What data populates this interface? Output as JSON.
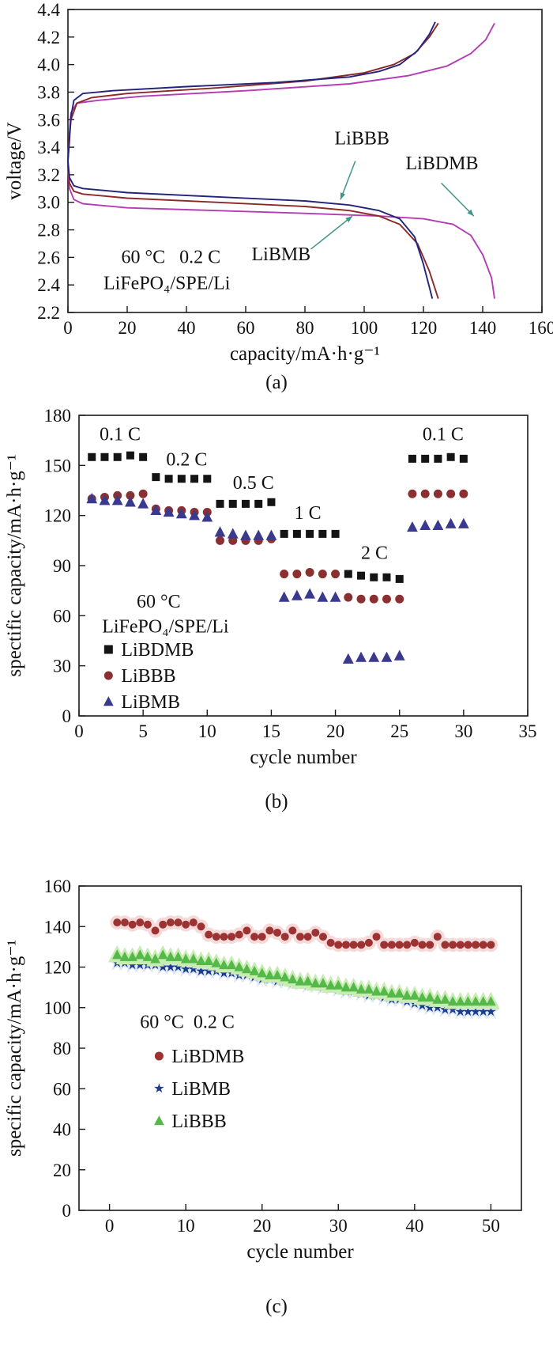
{
  "figure": {
    "text_color": "#111111",
    "arrow_color": "#3f9488"
  },
  "chart_data": [
    {
      "id": "a",
      "caption": "(a)",
      "type": "line",
      "xlabel": "capacity/mA·h·g⁻¹",
      "ylabel": "voltage/V",
      "xlim": [
        0,
        160
      ],
      "ylim": [
        2.2,
        4.4
      ],
      "xticks": [
        0,
        20,
        40,
        60,
        80,
        100,
        120,
        140,
        160
      ],
      "yticks": [
        2.2,
        2.4,
        2.6,
        2.8,
        3.0,
        3.2,
        3.4,
        3.6,
        3.8,
        4.0,
        4.2,
        4.4
      ],
      "xdec": 0,
      "ydec": 1,
      "annotations": [
        {
          "text": "60 °C   0.2 C",
          "ax": 18,
          "ay": 2.56
        },
        {
          "text": "LiFePO₄/SPE/Li",
          "ax": 12,
          "ay": 2.37
        },
        {
          "text": "LiBBB",
          "ax": 90,
          "ay": 3.42,
          "arrow": [
            97,
            3.3,
            92,
            3.02
          ]
        },
        {
          "text": "LiBDMB",
          "ax": 114,
          "ay": 3.24,
          "arrow": [
            126,
            3.14,
            137,
            2.9
          ]
        },
        {
          "text": "LiBMB",
          "ax": 62,
          "ay": 2.58,
          "arrow": [
            82,
            2.66,
            96,
            2.9
          ]
        }
      ],
      "series": [
        {
          "name": "LiBDMB charge",
          "color": "#b43cb4",
          "points": [
            [
              0,
              3.3
            ],
            [
              0.5,
              3.5
            ],
            [
              1,
              3.65
            ],
            [
              3,
              3.72
            ],
            [
              10,
              3.74
            ],
            [
              25,
              3.77
            ],
            [
              60,
              3.81
            ],
            [
              95,
              3.86
            ],
            [
              115,
              3.92
            ],
            [
              128,
              3.99
            ],
            [
              136,
              4.08
            ],
            [
              141,
              4.18
            ],
            [
              144,
              4.3
            ]
          ]
        },
        {
          "name": "LiBDMB discharge",
          "color": "#b43cb4",
          "points": [
            [
              0,
              3.24
            ],
            [
              0.5,
              3.1
            ],
            [
              2,
              3.02
            ],
            [
              5,
              2.99
            ],
            [
              20,
              2.96
            ],
            [
              50,
              2.94
            ],
            [
              80,
              2.92
            ],
            [
              105,
              2.9
            ],
            [
              120,
              2.88
            ],
            [
              130,
              2.84
            ],
            [
              136,
              2.76
            ],
            [
              140,
              2.62
            ],
            [
              143,
              2.45
            ],
            [
              144,
              2.3
            ]
          ]
        },
        {
          "name": "LiBMB charge",
          "color": "#8b2929",
          "points": [
            [
              0,
              3.32
            ],
            [
              0.5,
              3.48
            ],
            [
              1,
              3.6
            ],
            [
              3,
              3.72
            ],
            [
              8,
              3.76
            ],
            [
              20,
              3.79
            ],
            [
              50,
              3.83
            ],
            [
              80,
              3.88
            ],
            [
              100,
              3.94
            ],
            [
              110,
              4.0
            ],
            [
              117,
              4.08
            ],
            [
              122,
              4.2
            ],
            [
              125,
              4.3
            ]
          ]
        },
        {
          "name": "LiBMB discharge",
          "color": "#8b2929",
          "points": [
            [
              0,
              3.27
            ],
            [
              0.5,
              3.14
            ],
            [
              2,
              3.08
            ],
            [
              5,
              3.06
            ],
            [
              20,
              3.03
            ],
            [
              50,
              3.0
            ],
            [
              80,
              2.97
            ],
            [
              95,
              2.94
            ],
            [
              105,
              2.9
            ],
            [
              112,
              2.84
            ],
            [
              118,
              2.7
            ],
            [
              122,
              2.5
            ],
            [
              125,
              2.3
            ]
          ]
        },
        {
          "name": "LiBBB charge",
          "color": "#23237d",
          "points": [
            [
              0,
              3.3
            ],
            [
              0.5,
              3.45
            ],
            [
              1,
              3.62
            ],
            [
              2,
              3.74
            ],
            [
              5,
              3.79
            ],
            [
              15,
              3.81
            ],
            [
              40,
              3.84
            ],
            [
              70,
              3.87
            ],
            [
              95,
              3.91
            ],
            [
              105,
              3.95
            ],
            [
              112,
              4.0
            ],
            [
              118,
              4.1
            ],
            [
              122,
              4.22
            ],
            [
              124,
              4.31
            ]
          ]
        },
        {
          "name": "LiBBB discharge",
          "color": "#23237d",
          "points": [
            [
              0,
              3.3
            ],
            [
              0.5,
              3.18
            ],
            [
              2,
              3.12
            ],
            [
              5,
              3.1
            ],
            [
              20,
              3.07
            ],
            [
              50,
              3.04
            ],
            [
              80,
              3.01
            ],
            [
              95,
              2.98
            ],
            [
              105,
              2.94
            ],
            [
              112,
              2.88
            ],
            [
              117,
              2.75
            ],
            [
              120,
              2.55
            ],
            [
              123,
              2.3
            ]
          ]
        }
      ]
    },
    {
      "id": "b",
      "caption": "(b)",
      "type": "scatter",
      "xlabel": "cycle number",
      "ylabel": "spectific capacity/mA·h·g⁻¹",
      "xlim": [
        0,
        35
      ],
      "ylim": [
        0,
        180
      ],
      "xticks": [
        0,
        5,
        10,
        15,
        20,
        25,
        30,
        35
      ],
      "yticks": [
        0,
        30,
        60,
        90,
        120,
        150,
        180
      ],
      "xdec": 0,
      "ydec": 0,
      "annotations": [
        {
          "text": "0.1 C",
          "ax": 1.6,
          "ay": 165
        },
        {
          "text": "0.2 C",
          "ax": 6.8,
          "ay": 150
        },
        {
          "text": "0.5 C",
          "ax": 12,
          "ay": 136
        },
        {
          "text": "1 C",
          "ax": 16.8,
          "ay": 118
        },
        {
          "text": "2 C",
          "ax": 22,
          "ay": 94
        },
        {
          "text": "0.1 C",
          "ax": 26.8,
          "ay": 165
        },
        {
          "text": "60 °C",
          "ax": 4.5,
          "ay": 65
        },
        {
          "text": "LiFePO₄/SPE/Li",
          "ax": 1.8,
          "ay": 50
        }
      ],
      "legend": {
        "ax": 2.3,
        "ay": 36,
        "items": [
          {
            "label": "LiBDMB",
            "marker": "square",
            "color": "#141414"
          },
          {
            "label": "LiBBB",
            "marker": "circle",
            "color": "#8b3030"
          },
          {
            "label": "LiBMB",
            "marker": "triangle",
            "color": "#39398d"
          }
        ]
      },
      "series": [
        {
          "name": "LiBDMB",
          "marker": "square",
          "color": "#141414",
          "size": 5,
          "x_from": 1,
          "y": [
            155,
            155,
            155,
            156,
            155,
            143,
            142,
            142,
            142,
            142,
            127,
            127,
            127,
            127,
            128,
            109,
            109,
            109,
            109,
            109,
            85,
            84,
            83,
            83,
            82,
            154,
            154,
            154,
            155,
            154
          ]
        },
        {
          "name": "LiBBB",
          "marker": "circle",
          "color": "#8b3030",
          "size": 5.5,
          "x_from": 1,
          "y": [
            130,
            131,
            132,
            132,
            133,
            124,
            123,
            123,
            122,
            122,
            105,
            105,
            105,
            105,
            106,
            85,
            85,
            86,
            85,
            85,
            71,
            70,
            70,
            70,
            70,
            133,
            133,
            133,
            133,
            133
          ]
        },
        {
          "name": "LiBMB",
          "marker": "triangle",
          "color": "#39398d",
          "size": 6,
          "x_from": 1,
          "y": [
            130,
            129,
            129,
            128,
            127,
            123,
            122,
            121,
            120,
            119,
            110,
            109,
            108,
            108,
            108,
            71,
            72,
            73,
            71,
            71,
            34,
            35,
            35,
            35,
            36,
            113,
            114,
            114,
            115,
            115
          ]
        }
      ]
    },
    {
      "id": "c",
      "caption": "(c)",
      "type": "scatter",
      "xlabel": "cycle number",
      "ylabel": "specific capacity/mA·h·g⁻¹",
      "xlim": [
        -4,
        54
      ],
      "ylim": [
        0,
        160
      ],
      "xticks": [
        0,
        10,
        20,
        30,
        40,
        50
      ],
      "yticks": [
        0,
        20,
        40,
        60,
        80,
        100,
        120,
        140,
        160
      ],
      "xdec": 0,
      "ydec": 0,
      "annotations": [
        {
          "text": "60 °C  0.2 C",
          "ax": 4,
          "ay": 90
        }
      ],
      "legend": {
        "ax": 6.5,
        "ay": 73,
        "items": [
          {
            "label": "LiBDMB",
            "marker": "circle",
            "color": "#9c3232"
          },
          {
            "label": "LiBMB",
            "marker": "star",
            "color": "#1b3d8f"
          },
          {
            "label": "LiBBB",
            "marker": "triangle",
            "color": "#55b94a"
          }
        ]
      },
      "series": [
        {
          "name": "LiBDMB",
          "marker": "circle",
          "color": "#9c3232",
          "halo": "#f6dada",
          "size": 5,
          "x_from": 1,
          "y": [
            142,
            142,
            141,
            142,
            141,
            138,
            141,
            142,
            142,
            141,
            142,
            140,
            136,
            135,
            135,
            135,
            136,
            138,
            135,
            135,
            138,
            137,
            135,
            138,
            135,
            135,
            137,
            135,
            132,
            131,
            131,
            131,
            131,
            132,
            135,
            131,
            131,
            131,
            131,
            132,
            131,
            131,
            135,
            131,
            131,
            131,
            131,
            131,
            131,
            131
          ]
        },
        {
          "name": "LiBMB",
          "marker": "star",
          "color": "#1b3d8f",
          "halo": "#dce6f4",
          "size": 5.5,
          "x_from": 1,
          "y": [
            122,
            122,
            121,
            121,
            121,
            121,
            120,
            120,
            120,
            119,
            119,
            118,
            118,
            118,
            117,
            117,
            116,
            116,
            115,
            114,
            114,
            113,
            113,
            112,
            112,
            111,
            111,
            110,
            110,
            109,
            108,
            108,
            107,
            106,
            106,
            105,
            104,
            104,
            103,
            102,
            101,
            100,
            100,
            99,
            99,
            98,
            98,
            98,
            98,
            98
          ]
        },
        {
          "name": "LiBBB",
          "marker": "triangle",
          "color": "#55b94a",
          "halo": "#c9ecb5",
          "size": 5.5,
          "x_from": 1,
          "y": [
            126,
            125,
            125,
            126,
            125,
            124,
            126,
            125,
            125,
            124,
            124,
            123,
            123,
            122,
            121,
            121,
            120,
            119,
            118,
            117,
            116,
            116,
            115,
            114,
            113,
            113,
            112,
            112,
            111,
            111,
            110,
            110,
            109,
            109,
            108,
            108,
            107,
            107,
            106,
            106,
            105,
            105,
            104,
            104,
            103,
            103,
            103,
            103,
            103,
            103
          ]
        }
      ]
    }
  ]
}
